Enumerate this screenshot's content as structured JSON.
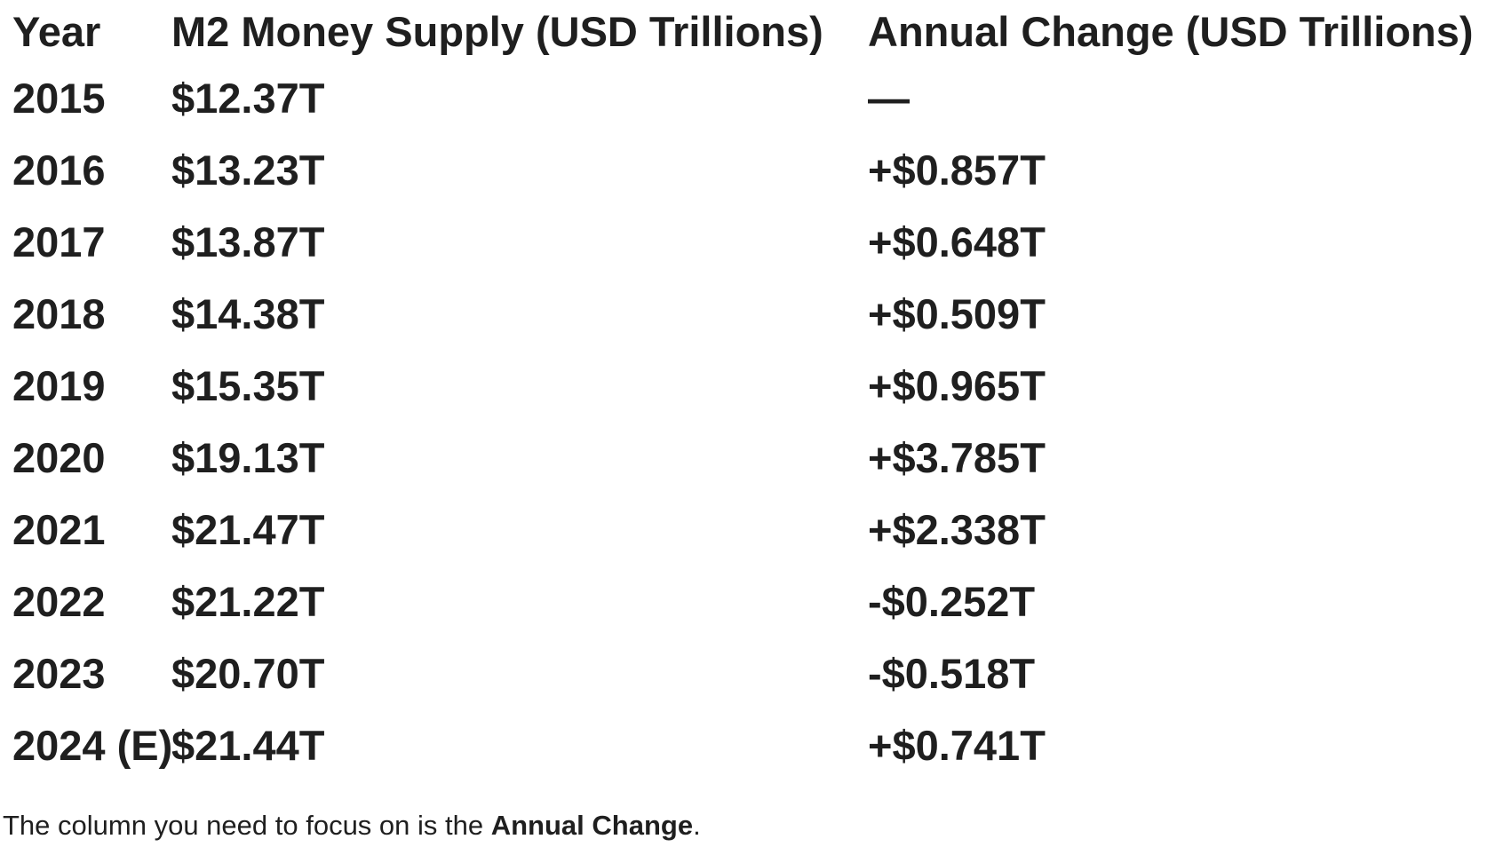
{
  "colors": {
    "text": "#1f1f1f",
    "background": "#ffffff"
  },
  "table": {
    "columns": [
      {
        "label": "Year"
      },
      {
        "label": "M2 Money Supply (USD Trillions)"
      },
      {
        "label": "Annual Change (USD Trillions)"
      }
    ],
    "rows": [
      {
        "year": "2015",
        "supply": "$12.37T",
        "change": "—"
      },
      {
        "year": "2016",
        "supply": "$13.23T",
        "change": "+$0.857T"
      },
      {
        "year": "2017",
        "supply": "$13.87T",
        "change": "+$0.648T"
      },
      {
        "year": "2018",
        "supply": "$14.38T",
        "change": "+$0.509T"
      },
      {
        "year": "2019",
        "supply": "$15.35T",
        "change": "+$0.965T"
      },
      {
        "year": "2020",
        "supply": "$19.13T",
        "change": "+$3.785T"
      },
      {
        "year": "2021",
        "supply": "$21.47T",
        "change": "+$2.338T"
      },
      {
        "year": "2022",
        "supply": "$21.22T",
        "change": "-$0.252T"
      },
      {
        "year": "2023",
        "supply": "$20.70T",
        "change": "-$0.518T"
      },
      {
        "year": "2024 (E)",
        "supply": "$21.44T",
        "change": "+$0.741T"
      }
    ]
  },
  "note": {
    "prefix": "The column you need to focus on is the ",
    "emphasis": "Annual Change",
    "suffix": "."
  }
}
